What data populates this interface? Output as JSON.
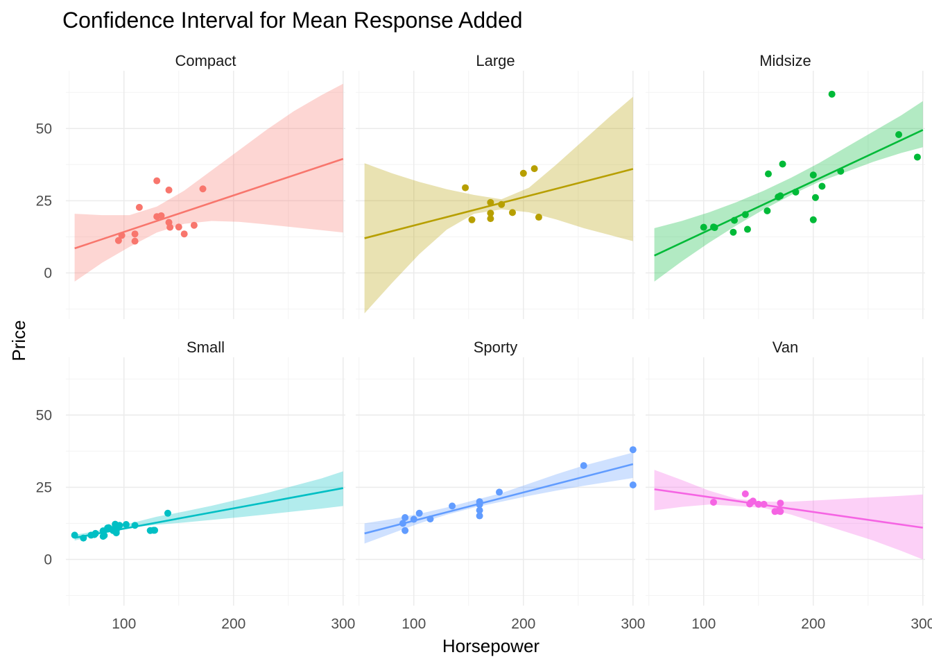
{
  "chart_data": {
    "type": "scatter",
    "title": "Confidence Interval for Mean Response Added",
    "xlabel": "Horsepower",
    "ylabel": "Price",
    "xlim": [
      47,
      302
    ],
    "ylim": [
      -16,
      70
    ],
    "x_ticks": [
      100,
      200,
      300
    ],
    "y_ticks": [
      0,
      25,
      50
    ],
    "grid": true,
    "legend": "none",
    "panels": [
      {
        "name": "Compact",
        "color": "#F8766D",
        "fit": {
          "x": [
            55,
            300
          ],
          "y": [
            8.5,
            39.5
          ]
        },
        "band": {
          "x": [
            55,
            80,
            105,
            130,
            155,
            180,
            205,
            230,
            255,
            280,
            300
          ],
          "lower": [
            -3.0,
            3.5,
            9.0,
            14.0,
            17.0,
            18.0,
            17.7,
            16.8,
            15.8,
            14.8,
            14.0
          ],
          "upper": [
            20.5,
            20.0,
            20.0,
            23.0,
            28.5,
            35.5,
            42.5,
            49.5,
            56.0,
            61.5,
            65.5
          ]
        },
        "points": [
          [
            95,
            11.2
          ],
          [
            98,
            13
          ],
          [
            110,
            11
          ],
          [
            110,
            13.5
          ],
          [
            114,
            22.7
          ],
          [
            130,
            19.5
          ],
          [
            130,
            31.9
          ],
          [
            134,
            19.8
          ],
          [
            141,
            28.7
          ],
          [
            141,
            17.5
          ],
          [
            142,
            15.8
          ],
          [
            150,
            15.9
          ],
          [
            155,
            13.5
          ],
          [
            164,
            16.5
          ],
          [
            172,
            29.1
          ]
        ]
      },
      {
        "name": "Large",
        "color": "#B79F00",
        "fit": {
          "x": [
            55,
            300
          ],
          "y": [
            12,
            36
          ]
        },
        "band": {
          "x": [
            55,
            80,
            105,
            130,
            155,
            180,
            205,
            230,
            255,
            280,
            300
          ],
          "lower": [
            -14.0,
            -3.5,
            6.5,
            15.0,
            20.5,
            22.0,
            21.0,
            18.5,
            15.5,
            13.0,
            11.0
          ],
          "upper": [
            38.0,
            34.5,
            31.5,
            29.0,
            27.0,
            25.5,
            29.5,
            37.5,
            46.0,
            54.5,
            61.0
          ]
        },
        "points": [
          [
            147,
            29.5
          ],
          [
            153,
            18.4
          ],
          [
            170,
            18.8
          ],
          [
            170,
            20.7
          ],
          [
            170,
            24.4
          ],
          [
            180,
            23.7
          ],
          [
            190,
            20.9
          ],
          [
            200,
            34.5
          ],
          [
            210,
            36.1
          ],
          [
            214,
            19.3
          ]
        ]
      },
      {
        "name": "Midsize",
        "color": "#00BA38",
        "fit": {
          "x": [
            55,
            300
          ],
          "y": [
            6,
            49.5
          ]
        },
        "band": {
          "x": [
            55,
            80,
            105,
            130,
            155,
            180,
            205,
            230,
            255,
            280,
            300
          ],
          "lower": [
            -3.0,
            4.0,
            10.5,
            16.5,
            22.0,
            27.0,
            31.5,
            35.0,
            38.5,
            41.5,
            43.5
          ],
          "upper": [
            15.5,
            18.0,
            21.0,
            24.5,
            28.5,
            33.0,
            38.0,
            43.5,
            49.0,
            54.5,
            59.5
          ]
        },
        "points": [
          [
            100,
            15.8
          ],
          [
            109,
            15.9
          ],
          [
            110,
            15.7
          ],
          [
            127,
            14.1
          ],
          [
            128,
            18.2
          ],
          [
            138,
            20.2
          ],
          [
            140,
            15.1
          ],
          [
            158,
            21.5
          ],
          [
            159,
            34.3
          ],
          [
            168,
            26.3
          ],
          [
            170,
            26.7
          ],
          [
            172,
            37.7
          ],
          [
            184,
            28.0
          ],
          [
            200,
            18.4
          ],
          [
            200,
            33.9
          ],
          [
            202,
            26.1
          ],
          [
            208,
            30.0
          ],
          [
            217,
            61.9
          ],
          [
            225,
            35.2
          ],
          [
            278,
            47.9
          ],
          [
            295,
            40.1
          ]
        ]
      },
      {
        "name": "Small",
        "color": "#00BFC4",
        "fit": {
          "x": [
            55,
            300
          ],
          "y": [
            7.5,
            24.7
          ]
        },
        "band": {
          "x": [
            55,
            80,
            105,
            130,
            155,
            180,
            205,
            230,
            255,
            280,
            300
          ],
          "lower": [
            6.5,
            9.0,
            11.0,
            12.0,
            12.8,
            13.7,
            14.6,
            15.6,
            16.6,
            17.6,
            18.5
          ],
          "upper": [
            8.5,
            10.2,
            12.4,
            14.8,
            16.6,
            18.6,
            20.8,
            23.0,
            25.5,
            28.0,
            30.5
          ]
        },
        "points": [
          [
            55,
            8.4
          ],
          [
            63,
            7.4
          ],
          [
            70,
            8.4
          ],
          [
            73,
            8.6
          ],
          [
            74,
            9.0
          ],
          [
            81,
            8.0
          ],
          [
            81,
            9.9
          ],
          [
            82,
            8.3
          ],
          [
            85,
            10.9
          ],
          [
            86,
            11.0
          ],
          [
            90,
            10.0
          ],
          [
            92,
            12.2
          ],
          [
            92,
            11.3
          ],
          [
            93,
            9.2
          ],
          [
            93,
            10.0
          ],
          [
            96,
            11.8
          ],
          [
            102,
            12.1
          ],
          [
            110,
            11.8
          ],
          [
            124,
            10.0
          ],
          [
            127,
            10.1
          ],
          [
            128,
            10.1
          ],
          [
            140,
            16.0
          ]
        ]
      },
      {
        "name": "Sporty",
        "color": "#619CFF",
        "fit": {
          "x": [
            55,
            300
          ],
          "y": [
            9,
            33
          ]
        },
        "band": {
          "x": [
            55,
            80,
            105,
            130,
            155,
            180,
            205,
            230,
            255,
            280,
            300
          ],
          "lower": [
            5.5,
            9.0,
            12.5,
            15.5,
            18.0,
            20.0,
            22.0,
            23.8,
            25.5,
            27.0,
            28.2
          ],
          "upper": [
            12.5,
            14.0,
            15.8,
            18.0,
            20.5,
            23.0,
            26.2,
            29.5,
            32.5,
            35.0,
            37.0
          ]
        },
        "points": [
          [
            90,
            12.5
          ],
          [
            92,
            14.5
          ],
          [
            92,
            10.0
          ],
          [
            100,
            13.9
          ],
          [
            105,
            16.0
          ],
          [
            115,
            14.0
          ],
          [
            135,
            18.5
          ],
          [
            160,
            20.0
          ],
          [
            160,
            19.0
          ],
          [
            160,
            15.1
          ],
          [
            160,
            17.0
          ],
          [
            178,
            23.3
          ],
          [
            255,
            32.5
          ],
          [
            300,
            38.0
          ],
          [
            300,
            25.8
          ]
        ]
      },
      {
        "name": "Van",
        "color": "#F564E3",
        "fit": {
          "x": [
            55,
            300
          ],
          "y": [
            24.3,
            11
          ]
        },
        "band": {
          "x": [
            55,
            80,
            105,
            130,
            155,
            180,
            205,
            230,
            255,
            280,
            300
          ],
          "lower": [
            17.0,
            18.2,
            19.0,
            18.5,
            17.8,
            15.5,
            12.5,
            9.5,
            6.5,
            3.0,
            0.0
          ],
          "upper": [
            31.0,
            27.5,
            23.8,
            21.0,
            20.0,
            20.0,
            20.5,
            21.0,
            21.5,
            22.0,
            22.5
          ]
        },
        "points": [
          [
            109,
            19.8
          ],
          [
            138,
            22.7
          ],
          [
            142,
            19.2
          ],
          [
            143,
            19.7
          ],
          [
            145,
            20.2
          ],
          [
            150,
            19.1
          ],
          [
            155,
            19.1
          ],
          [
            165,
            16.6
          ],
          [
            168,
            16.8
          ],
          [
            170,
            19.5
          ],
          [
            170,
            16.6
          ]
        ]
      }
    ]
  }
}
